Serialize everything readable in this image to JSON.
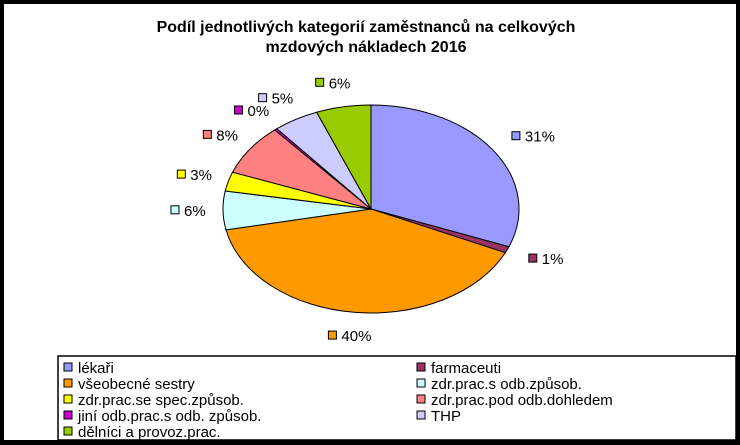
{
  "chart_data": {
    "type": "pie",
    "title_lines": [
      "Podíl jednotlivých kategorií zaměstnanců na celkových",
      "mzdových nákladech 2016"
    ],
    "slices": [
      {
        "name": "lékaři",
        "value": 31,
        "label": "31%",
        "color": "#9999ff"
      },
      {
        "name": "farmaceuti",
        "value": 1,
        "label": "1%",
        "color": "#993366"
      },
      {
        "name": "všeobecné sestry",
        "value": 40,
        "label": "40%",
        "color": "#ff9900"
      },
      {
        "name": "zdr.prac.s odb.způsob.",
        "value": 6,
        "label": "6%",
        "color": "#ccffff"
      },
      {
        "name": "zdr.prac.se spec.způsob.",
        "value": 3,
        "label": "3%",
        "color": "#ffff00"
      },
      {
        "name": "zdr.prac.pod odb.dohledem",
        "value": 8,
        "label": "8%",
        "color": "#ff8080"
      },
      {
        "name": "jiní odb.prac.s odb. způsob.",
        "value": 0.3,
        "label": "0%",
        "color": "#cc00cc"
      },
      {
        "name": "THP",
        "value": 5,
        "label": "5%",
        "color": "#ccccff"
      },
      {
        "name": "dělníci a provoz.prac.",
        "value": 6,
        "label": "6%",
        "color": "#99cc00"
      }
    ],
    "legend": "bottom"
  }
}
